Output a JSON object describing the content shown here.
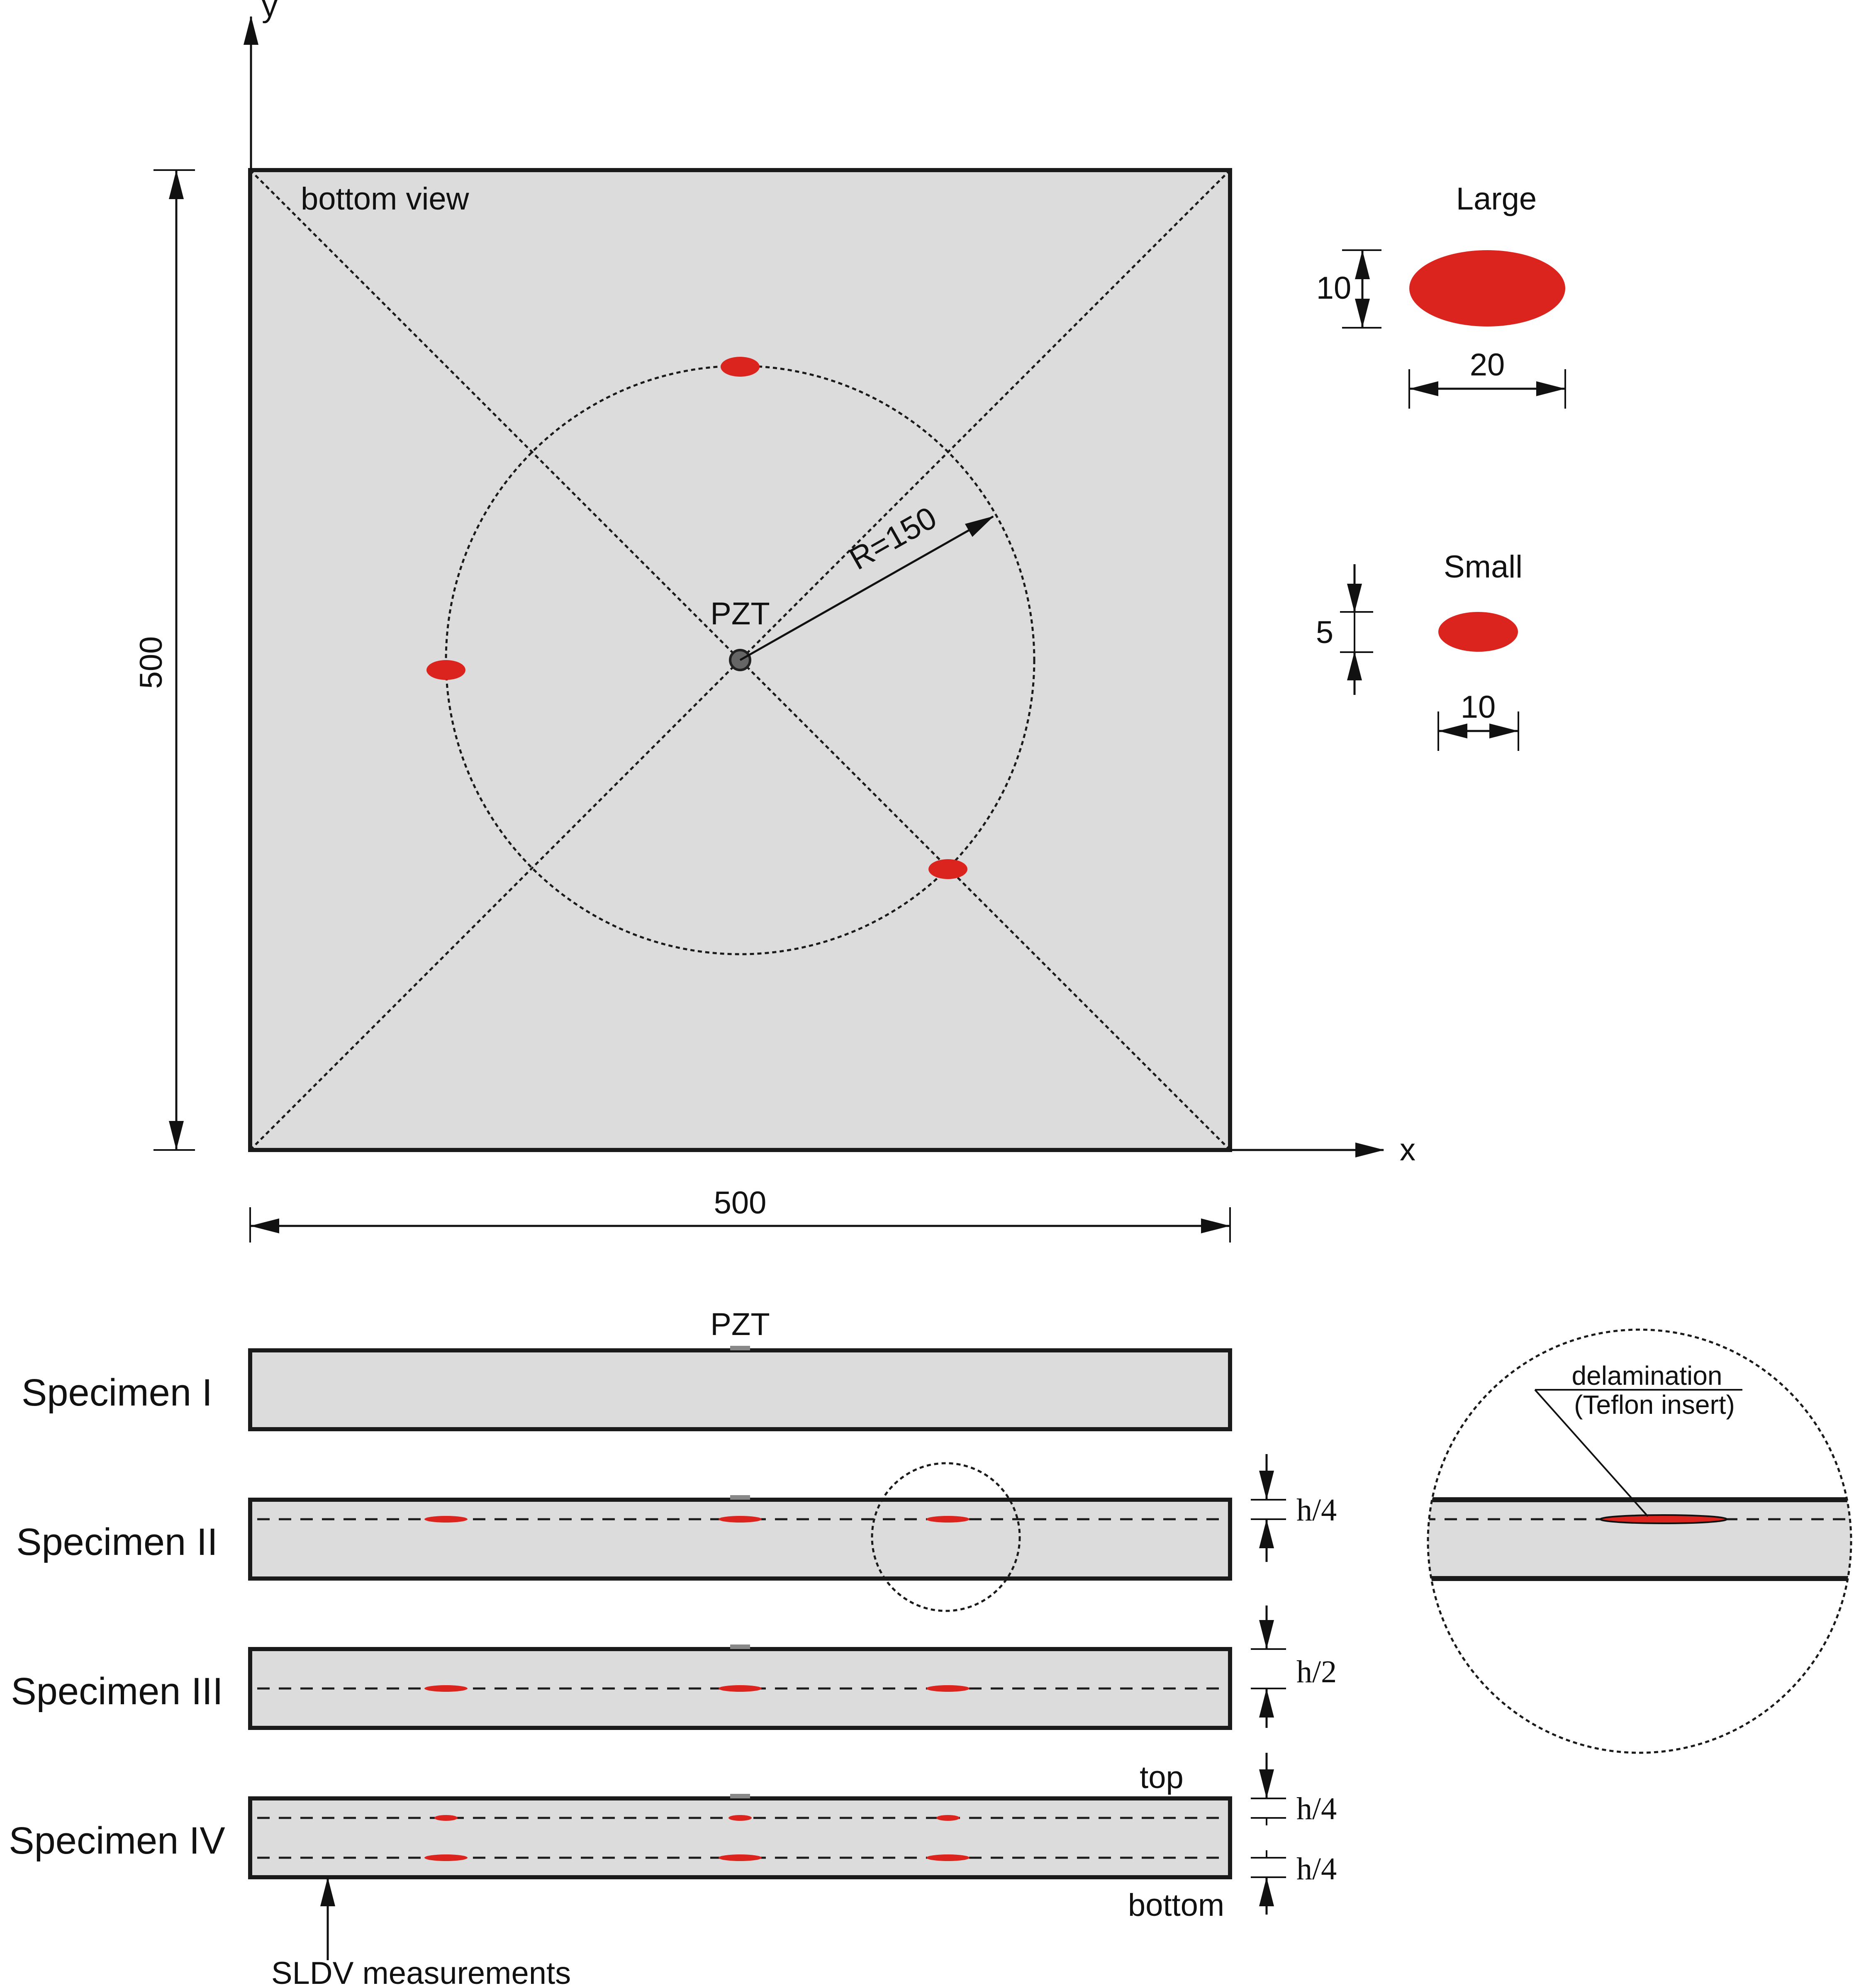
{
  "axes": {
    "x_label": "x",
    "y_label": "y"
  },
  "plan_view": {
    "caption": "bottom view",
    "width_label": "500",
    "height_label": "500",
    "radius_label": "R=150",
    "pzt_label": "PZT"
  },
  "legend": {
    "large": {
      "title": "Large",
      "height_label": "10",
      "width_label": "20"
    },
    "small": {
      "title": "Small",
      "height_label": "5",
      "width_label": "10"
    }
  },
  "cross_sections": {
    "pzt_label": "PZT",
    "specimens": [
      "Specimen I",
      "Specimen II",
      "Specimen III",
      "Specimen IV"
    ],
    "depth_labels": {
      "specimen_2": "h/4",
      "specimen_3": "h/2",
      "specimen_4_top": "h/4",
      "specimen_4_bottom": "h/4"
    },
    "top_label": "top",
    "bottom_label": "bottom",
    "sldv_label": "SLDV measurements"
  },
  "detail": {
    "line1": "delamination",
    "line2": "(Teflon insert)"
  },
  "colors": {
    "delamination": "#dc241f",
    "plate": "#dcdcdc"
  }
}
